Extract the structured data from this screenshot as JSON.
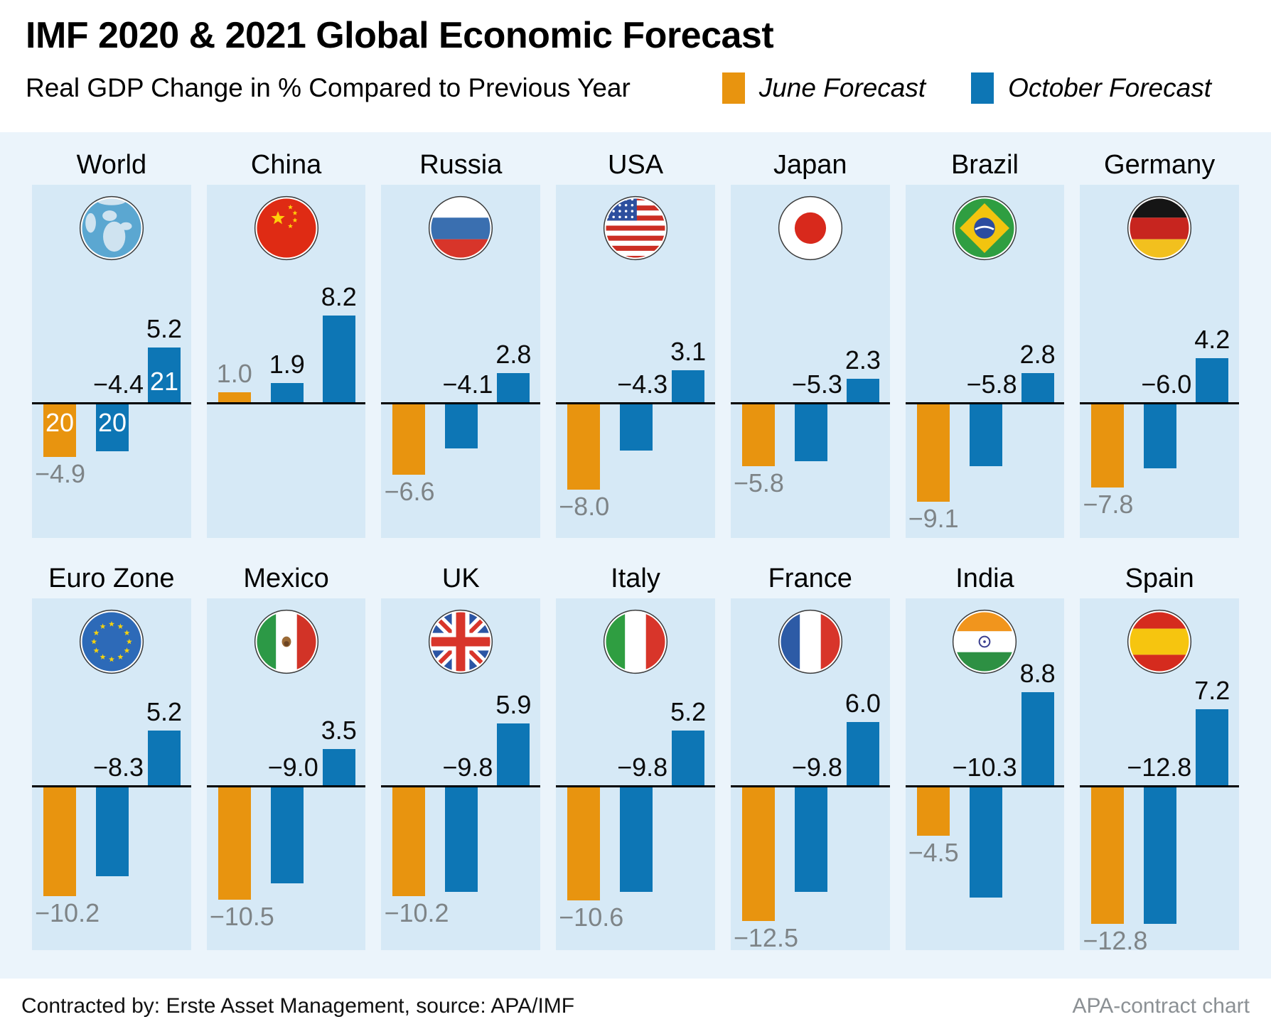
{
  "header": {
    "title": "IMF 2020 & 2021 Global Economic Forecast",
    "subtitle": "Real GDP Change in % Compared to Previous Year",
    "legend": [
      {
        "label": "June Forecast",
        "color": "#e8940f",
        "icon": "june-forecast-swatch"
      },
      {
        "label": "October Forecast",
        "color": "#0d76b5",
        "icon": "october-forecast-swatch"
      }
    ]
  },
  "footer": {
    "left": "Contracted by: Erste Asset Management, source: APA/IMF",
    "right": "APA-contract chart"
  },
  "colors": {
    "june_bar": "#e8940f",
    "october_bar": "#0d76b5",
    "panel_background": "#d6e9f6",
    "page_background": "#ebf4fb",
    "june_value_label": "#7e8487",
    "october_value_label": "#0b0b0b",
    "zero_line": "#000000"
  },
  "chart_data": {
    "type": "bar",
    "title": "IMF 2020 & 2021 Global Economic Forecast",
    "subtitle": "Real GDP Change in % Compared to Previous Year",
    "unit": "%",
    "legend": [
      "June Forecast",
      "October Forecast"
    ],
    "legend_position": "top-right",
    "series_names": [
      "June Forecast 2020",
      "October Forecast 2020",
      "October Forecast 2021"
    ],
    "ylim": [
      -13,
      9
    ],
    "grid": false,
    "panels": [
      {
        "name": "World",
        "flag": "world",
        "values": [
          -4.9,
          -4.4,
          5.2
        ],
        "bar_year_labels": [
          "20",
          "20",
          "21"
        ]
      },
      {
        "name": "China",
        "flag": "china",
        "values": [
          1.0,
          1.9,
          8.2
        ]
      },
      {
        "name": "Russia",
        "flag": "russia",
        "values": [
          -6.6,
          -4.1,
          2.8
        ]
      },
      {
        "name": "USA",
        "flag": "usa",
        "values": [
          -8.0,
          -4.3,
          3.1
        ]
      },
      {
        "name": "Japan",
        "flag": "japan",
        "values": [
          -5.8,
          -5.3,
          2.3
        ]
      },
      {
        "name": "Brazil",
        "flag": "brazil",
        "values": [
          -9.1,
          -5.8,
          2.8
        ]
      },
      {
        "name": "Germany",
        "flag": "germany",
        "values": [
          -7.8,
          -6.0,
          4.2
        ]
      },
      {
        "name": "Euro Zone",
        "flag": "eurozone",
        "values": [
          -10.2,
          -8.3,
          5.2
        ]
      },
      {
        "name": "Mexico",
        "flag": "mexico",
        "values": [
          -10.5,
          -9.0,
          3.5
        ]
      },
      {
        "name": "UK",
        "flag": "uk",
        "values": [
          -10.2,
          -9.8,
          5.9
        ]
      },
      {
        "name": "Italy",
        "flag": "italy",
        "values": [
          -10.6,
          -9.8,
          5.2
        ]
      },
      {
        "name": "France",
        "flag": "france",
        "values": [
          -12.5,
          -9.8,
          6.0
        ]
      },
      {
        "name": "India",
        "flag": "india",
        "values": [
          -4.5,
          -10.3,
          8.8
        ]
      },
      {
        "name": "Spain",
        "flag": "spain",
        "values": [
          -12.8,
          -12.8,
          7.2
        ]
      }
    ]
  }
}
